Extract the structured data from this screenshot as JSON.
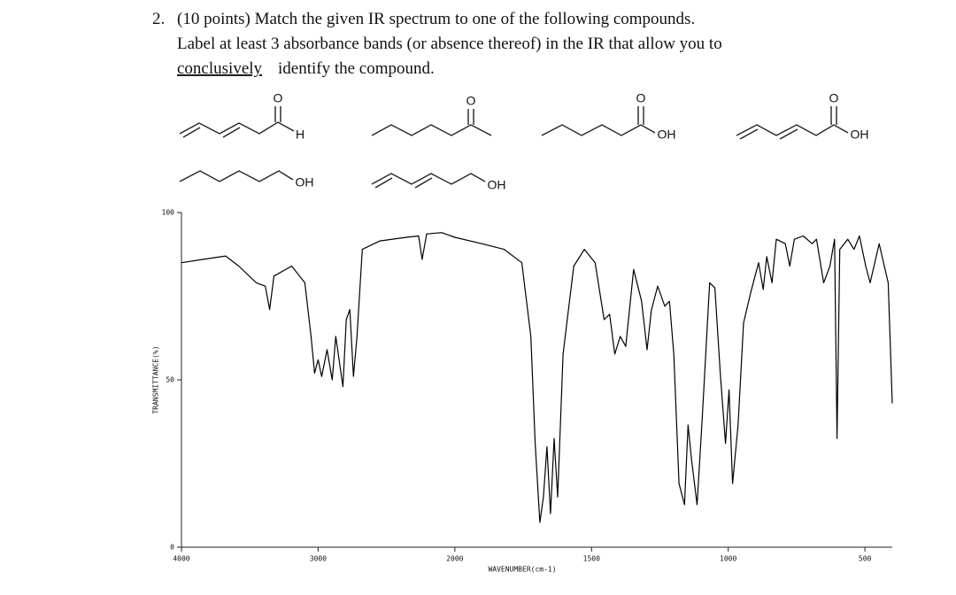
{
  "question": {
    "number": "2.",
    "line1": "(10 points) Match the given IR spectrum to one of the following compounds.",
    "line2": "Label at least 3 absorbance bands (or absence thereof) in the IR that allow you to",
    "line3_underlined": "conclusively",
    "line3_rest": "identify the compound."
  },
  "compounds": [
    [
      "O",
      "H"
    ],
    [
      "O"
    ],
    [
      "O",
      "OH"
    ],
    [
      "O",
      "OH"
    ],
    [
      "OH"
    ],
    [
      "OH"
    ]
  ],
  "chart_data": {
    "type": "line",
    "y_label": "TRANSMITTANCE(%)",
    "x_label": "WAVENUMBER(cm-1)",
    "color": "#000000",
    "xlim": [
      4000,
      400
    ],
    "xticks": [
      4000,
      3000,
      2000,
      1500,
      1000,
      500
    ],
    "ylim": [
      0,
      100
    ],
    "yticks": [
      0,
      50,
      100
    ],
    "x": [
      4000,
      3839,
      3677,
      3581,
      3452,
      3387,
      3355,
      3323,
      3194,
      3097,
      3052,
      3026,
      3000,
      2974,
      2935,
      2897,
      2871,
      2819,
      2794,
      2768,
      2742,
      2716,
      2677,
      2548,
      2355,
      2265,
      2239,
      2206,
      2097,
      2000,
      1902,
      1820,
      1755,
      1722,
      1706,
      1689,
      1676,
      1663,
      1650,
      1637,
      1624,
      1604,
      1565,
      1526,
      1487,
      1454,
      1434,
      1415,
      1395,
      1375,
      1346,
      1317,
      1297,
      1281,
      1258,
      1232,
      1215,
      1199,
      1180,
      1160,
      1147,
      1134,
      1114,
      1095,
      1068,
      1049,
      1029,
      1010,
      997,
      984,
      964,
      944,
      918,
      889,
      872,
      859,
      840,
      824,
      791,
      775,
      758,
      726,
      693,
      677,
      651,
      628,
      611,
      602,
      592,
      563,
      540,
      520,
      497,
      481,
      448,
      415,
      400
    ],
    "values": [
      85,
      86,
      87,
      84,
      79,
      78,
      71,
      81,
      84,
      79,
      63,
      52,
      56,
      51,
      59,
      50,
      63,
      48,
      68,
      71,
      51,
      63,
      89,
      91.5,
      92.6,
      93,
      86,
      93.6,
      94,
      92.6,
      90.7,
      89,
      85,
      63,
      31,
      7.4,
      15,
      30,
      10,
      32.5,
      15,
      57.7,
      84,
      89,
      85,
      68,
      69.6,
      57.7,
      63,
      60,
      83,
      73.5,
      59,
      70.9,
      78,
      72,
      73.5,
      57.7,
      19,
      12.7,
      36.5,
      26,
      12.7,
      39,
      79,
      77.5,
      52,
      31,
      47,
      19,
      36.5,
      67,
      76,
      85,
      77,
      86.8,
      79,
      92,
      90.7,
      84,
      92,
      93,
      90.7,
      92,
      79,
      84,
      92,
      32.5,
      89,
      92,
      89,
      93,
      84,
      79,
      90.7,
      79,
      43
    ]
  }
}
